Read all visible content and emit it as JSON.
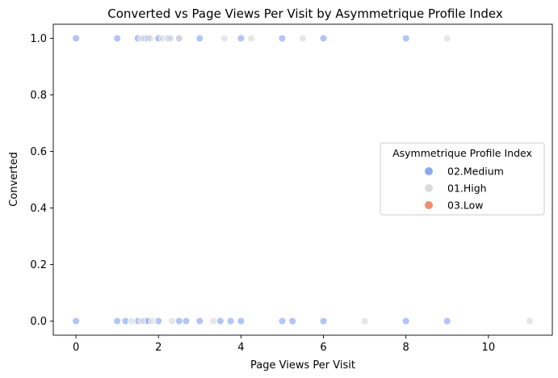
{
  "chart_data": {
    "type": "scatter",
    "title": "Converted vs Page Views Per Visit by Asymmetrique Profile Index",
    "xlabel": "Page Views Per Visit",
    "ylabel": "Converted",
    "xlim": [
      -0.55,
      11.55
    ],
    "ylim": [
      -0.05,
      1.05
    ],
    "xticks": [
      0,
      2,
      4,
      6,
      8,
      10
    ],
    "xtick_labels": [
      "0",
      "2",
      "4",
      "6",
      "8",
      "10"
    ],
    "yticks": [
      0.0,
      0.2,
      0.4,
      0.6,
      0.8,
      1.0
    ],
    "ytick_labels": [
      "0.0",
      "0.2",
      "0.4",
      "0.6",
      "0.8",
      "1.0"
    ],
    "grid": false,
    "legend": {
      "title": "Asymmetrique Profile Index",
      "placement": "center-right"
    },
    "series": [
      {
        "name": "02.Medium",
        "color": "#8DA9F2",
        "points": [
          [
            0,
            1
          ],
          [
            1,
            1
          ],
          [
            1.5,
            1
          ],
          [
            1.67,
            1
          ],
          [
            1.75,
            1
          ],
          [
            2,
            1
          ],
          [
            2.25,
            1
          ],
          [
            2.5,
            1
          ],
          [
            3,
            1
          ],
          [
            4,
            1
          ],
          [
            5,
            1
          ],
          [
            6,
            1
          ],
          [
            8,
            1
          ],
          [
            0,
            0
          ],
          [
            1,
            0
          ],
          [
            1.2,
            0
          ],
          [
            1.5,
            0
          ],
          [
            1.67,
            0
          ],
          [
            1.75,
            0
          ],
          [
            2,
            0
          ],
          [
            2.5,
            0
          ],
          [
            2.67,
            0
          ],
          [
            3,
            0
          ],
          [
            3.5,
            0
          ],
          [
            3.75,
            0
          ],
          [
            4,
            0
          ],
          [
            5,
            0
          ],
          [
            5.25,
            0
          ],
          [
            6,
            0
          ],
          [
            8,
            0
          ],
          [
            9,
            0
          ]
        ]
      },
      {
        "name": "01.High",
        "color": "#DCDCDC",
        "points": [
          [
            1.6,
            1
          ],
          [
            1.8,
            1
          ],
          [
            2.1,
            1
          ],
          [
            2.3,
            1
          ],
          [
            2.5,
            1
          ],
          [
            3.6,
            1
          ],
          [
            4.25,
            1
          ],
          [
            5.5,
            1
          ],
          [
            9,
            1
          ],
          [
            1.35,
            0
          ],
          [
            1.6,
            0
          ],
          [
            1.85,
            0
          ],
          [
            2.33,
            0
          ],
          [
            3.33,
            0
          ],
          [
            7,
            0
          ],
          [
            11,
            0
          ]
        ]
      },
      {
        "name": "03.Low",
        "color": "#F08F6E",
        "points": []
      }
    ]
  }
}
